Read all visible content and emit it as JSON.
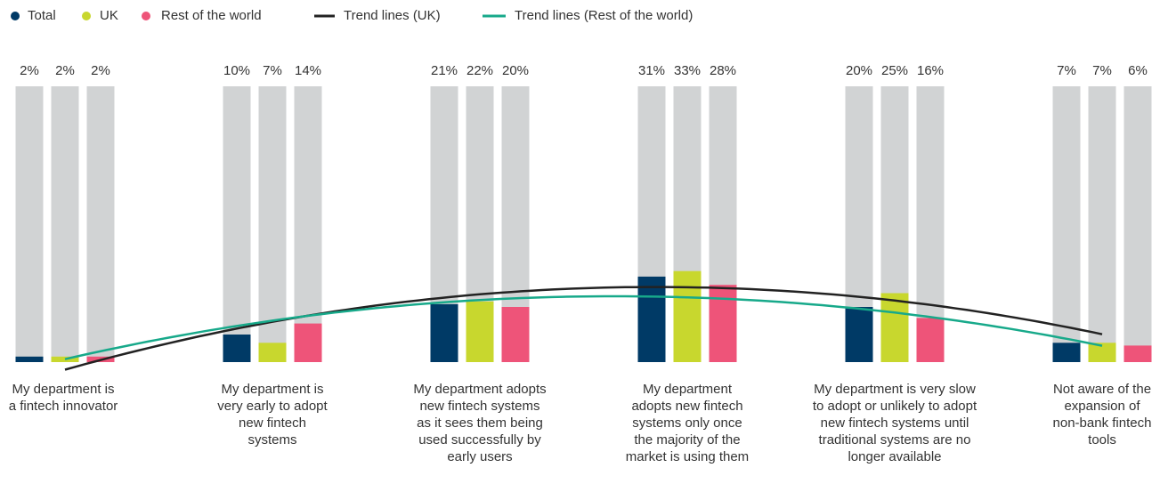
{
  "chart_data": {
    "type": "bar",
    "categories": [
      "My department is a fintech innovator",
      "My department is very early to adopt new fintech systems",
      "My department adopts new fintech systems as it sees them being used successfully by early users",
      "My department adopts new fintech systems only once the majority of the market is using them",
      "My department is very slow to adopt or unlikely to adopt new fintech systems until traditional systems are no longer available",
      "Not aware of the expansion of non-bank fintech tools"
    ],
    "series": [
      {
        "name": "Total",
        "color": "#003a66",
        "values": [
          2,
          10,
          21,
          31,
          20,
          7
        ],
        "value_labels": [
          "2%",
          "10%",
          "21%",
          "31%",
          "20%",
          "7%"
        ]
      },
      {
        "name": "UK",
        "color": "#c8d72e",
        "values": [
          2,
          7,
          22,
          33,
          25,
          7
        ],
        "value_labels": [
          "2%",
          "7%",
          "22%",
          "33%",
          "25%",
          "7%"
        ]
      },
      {
        "name": "Rest of the world",
        "color": "#ee5479",
        "values": [
          2,
          14,
          20,
          28,
          16,
          6
        ],
        "value_labels": [
          "2%",
          "14%",
          "20%",
          "28%",
          "16%",
          "6%"
        ]
      }
    ],
    "trend_lines": [
      {
        "name": "Trend lines (UK)",
        "color": "#222222",
        "series": 1
      },
      {
        "name": "Trend lines (Rest of the world)",
        "color": "#17a98a",
        "series": 2
      }
    ],
    "ylim": [
      0,
      100
    ],
    "background_color": "#d1d3d4"
  }
}
